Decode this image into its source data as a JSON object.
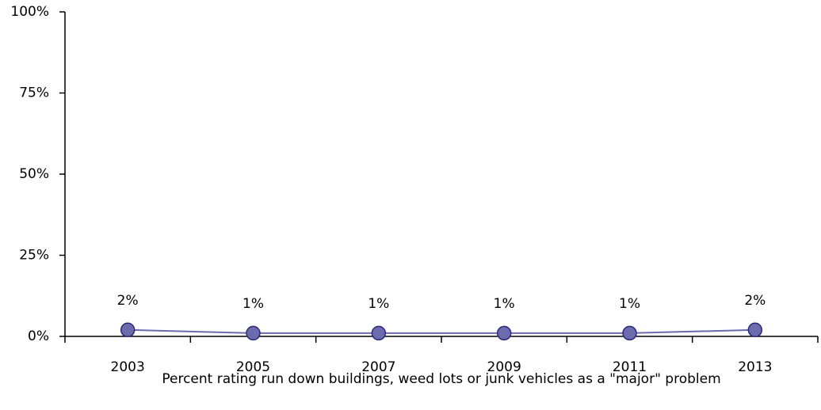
{
  "chart_data": {
    "type": "line",
    "x_label": "Percent rating run down buildings, weed lots or junk vehicles as a \"major\" problem",
    "categories": [
      "2003",
      "2005",
      "2007",
      "2009",
      "2011",
      "2013"
    ],
    "series": [
      {
        "color": "#6b6bae",
        "values": [
          2,
          1,
          1,
          1,
          1,
          2
        ],
        "value_labels": [
          "2%",
          "1%",
          "1%",
          "1%",
          "1%",
          "2%"
        ]
      }
    ],
    "ylim": [
      0,
      100
    ],
    "yticks": [
      {
        "value": 0,
        "label": "0%"
      },
      {
        "value": 25,
        "label": "25%"
      },
      {
        "value": 50,
        "label": "50%"
      },
      {
        "value": 75,
        "label": "75%"
      },
      {
        "value": 100,
        "label": "100%"
      }
    ]
  }
}
